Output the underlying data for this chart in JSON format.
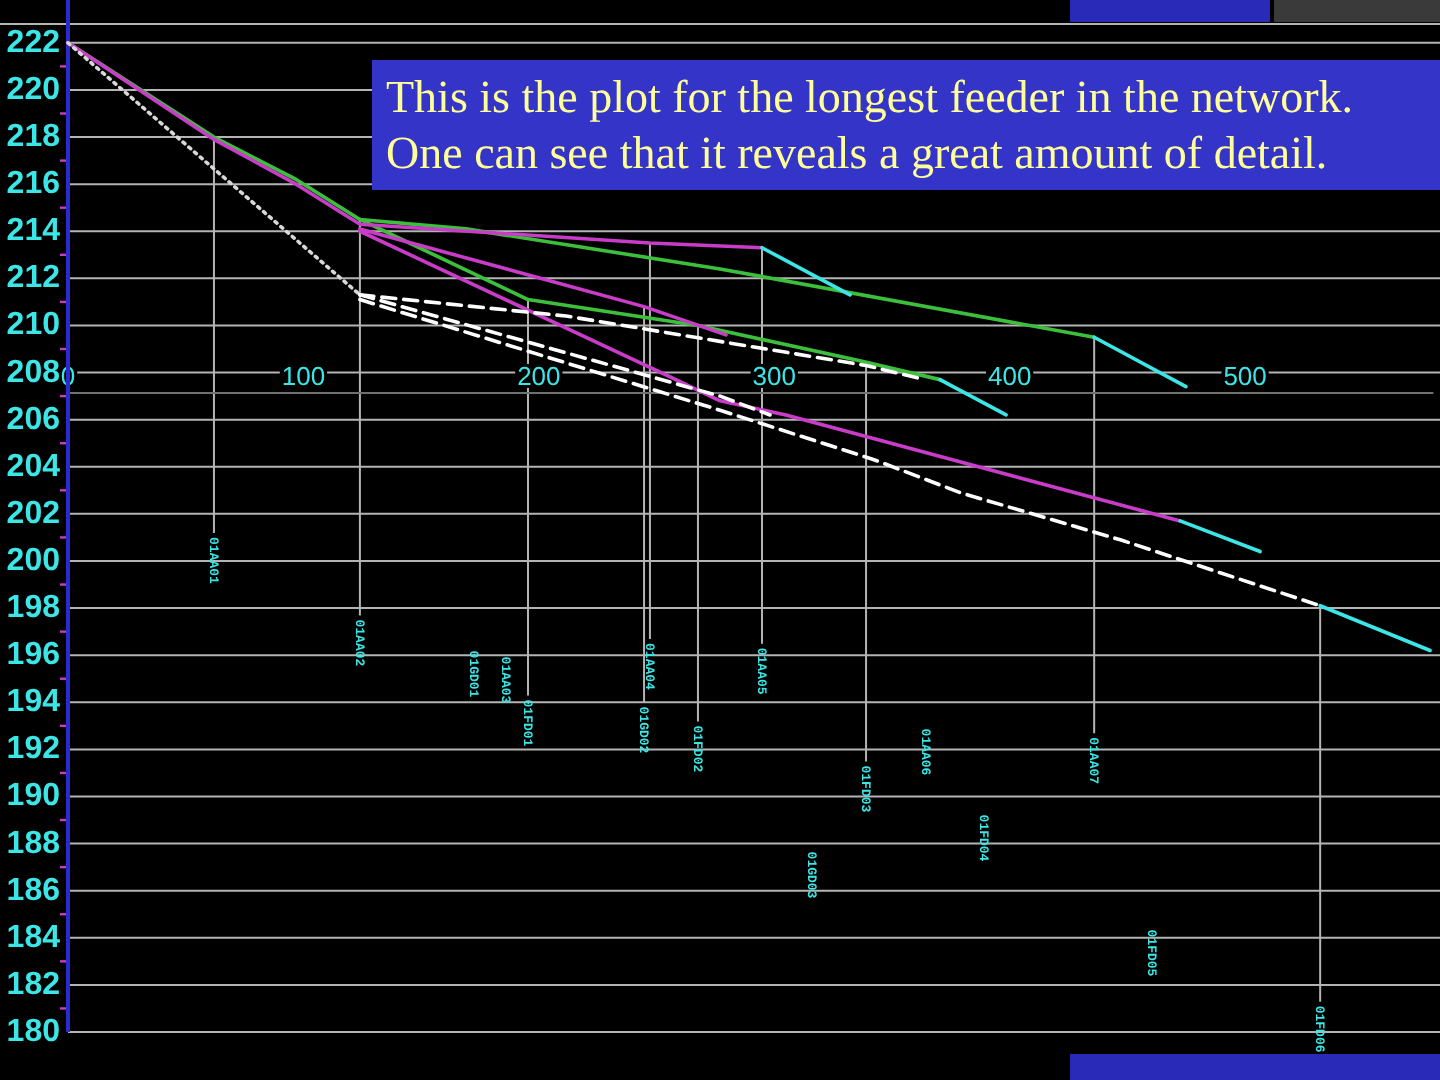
{
  "chart_data": {
    "type": "line",
    "annotations": [
      {
        "text": "01AA01",
        "x": 62,
        "y": 218.0
      },
      {
        "text": "01AA02",
        "x": 124,
        "y": 214.5
      },
      {
        "text": "01FD01",
        "x": 195.4,
        "y": 211.1
      },
      {
        "text": "01GD02",
        "x": 244.7,
        "y": 210.8
      },
      {
        "text": "01AA04",
        "x": 247.2,
        "y": 213.5
      },
      {
        "text": "01FD02",
        "x": 267.6,
        "y": 210.0
      },
      {
        "text": "01AA05",
        "x": 294.8,
        "y": 213.3
      },
      {
        "text": "01FD03",
        "x": 339,
        "y": 208.3
      },
      {
        "text": "01AA07",
        "x": 435.9,
        "y": 209.5
      },
      {
        "text": "01FD06",
        "x": 531.9,
        "y": 198.1
      },
      "01GD01",
      "01AA03",
      "01GD03",
      "01AA06",
      "01FD04",
      "01FD05",
      "This is the plot for the longest feeder in the network. One can see that it reveals a great amount of detail."
    ],
    "series": [
      {
        "color": "#3cc03c",
        "x": [
          0,
          62,
          96.9,
          124,
          169.1,
          277,
          435.9
        ],
        "values": [
          222,
          218.0,
          216.2,
          214.5,
          214.1,
          212.4,
          209.5
        ]
      },
      {
        "color": "#3cc03c",
        "x": [
          124,
          195.4,
          267.6,
          336.4,
          370.4
        ],
        "values": [
          214.5,
          211.1,
          210.0,
          208.5,
          207.7
        ]
      },
      {
        "color": "#c83cc8",
        "x": [
          0,
          62,
          96.9,
          124,
          247.2,
          294.8
        ],
        "values": [
          222,
          217.9,
          216.0,
          214.3,
          213.5,
          213.3
        ]
      },
      {
        "color": "#c83cc8",
        "x": [
          124,
          244.7,
          279.5
        ],
        "values": [
          214.1,
          210.8,
          209.6
        ]
      },
      {
        "color": "#c83cc8",
        "x": [
          124,
          254,
          277,
          305,
          472.4
        ],
        "values": [
          214.0,
          207.9,
          206.8,
          206.2,
          201.7
        ]
      },
      {
        "color": "#d8d8d8",
        "line_style": "dotted",
        "x": [
          0,
          124
        ],
        "values": [
          222,
          211.3
        ]
      },
      {
        "color": "#ffffff",
        "line_style": "dashed",
        "x": [
          124,
          211.6,
          339,
          364.0
        ],
        "values": [
          211.3,
          210.4,
          208.3,
          207.7
        ]
      },
      {
        "color": "#ffffff",
        "line_style": "dashed",
        "x": [
          124,
          277,
          298.2
        ],
        "values": [
          211.3,
          207.0,
          206.2
        ]
      },
      {
        "color": "#ffffff",
        "line_style": "dashed",
        "x": [
          124,
          277,
          342.4,
          379,
          447,
          531.9
        ],
        "values": [
          211.1,
          206.4,
          204.3,
          202.9,
          200.9,
          198.1
        ]
      },
      {
        "color": "#3ce6e6",
        "x": [
          294.8,
          332.2
        ],
        "values": [
          213.3,
          211.3
        ]
      },
      {
        "color": "#3ce6e6",
        "x": [
          435.9,
          474.9
        ],
        "values": [
          209.5,
          207.4
        ]
      },
      {
        "color": "#3ce6e6",
        "x": [
          370.4,
          398.5
        ],
        "values": [
          207.7,
          206.2
        ]
      },
      {
        "color": "#3ce6e6",
        "x": [
          472.4,
          506.4
        ],
        "values": [
          201.7,
          200.4
        ]
      },
      {
        "color": "#3ce6e6",
        "x": [
          531.9,
          578.6
        ],
        "values": [
          198.1,
          196.2
        ]
      }
    ],
    "xlim": [
      0,
      580
    ],
    "xticks": [
      0,
      100,
      200,
      300,
      400,
      500
    ],
    "ylim": [
      180,
      222.8
    ],
    "yticks": [
      180,
      {
        "value": 181,
        "label": null
      },
      182,
      {
        "value": 183,
        "label": null
      },
      184,
      {
        "value": 185,
        "label": null
      },
      186,
      {
        "value": 187,
        "label": null
      },
      188,
      {
        "value": 189,
        "label": null
      },
      190,
      {
        "value": 191,
        "label": null
      },
      192,
      {
        "value": 193,
        "label": null
      },
      194,
      {
        "value": 195,
        "label": null
      },
      196,
      {
        "value": 197,
        "label": null
      },
      198,
      {
        "value": 199,
        "label": null
      },
      200,
      {
        "value": 201,
        "label": null
      },
      202,
      {
        "value": 203,
        "label": null
      },
      204,
      {
        "value": 205,
        "label": null
      },
      206,
      {
        "value": 207,
        "label": null
      },
      208,
      {
        "value": 209,
        "label": null
      },
      210,
      {
        "value": 211,
        "label": null
      },
      212,
      {
        "value": 213,
        "label": null
      },
      214,
      {
        "value": 215,
        "label": null
      },
      216,
      {
        "value": 217,
        "label": null
      },
      218,
      {
        "value": 219,
        "label": null
      },
      220,
      {
        "value": 221,
        "label": null
      },
      222
    ],
    "grid": "y"
  }
}
